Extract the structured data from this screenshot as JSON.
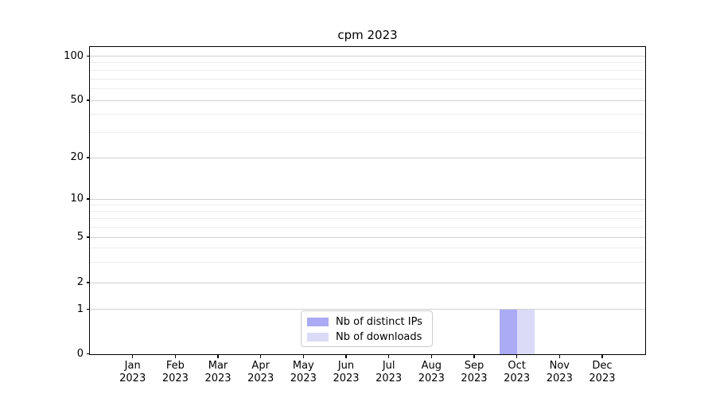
{
  "chart_data": {
    "type": "bar",
    "title": "cpm 2023",
    "categories": [
      "Jan",
      "Feb",
      "Mar",
      "Apr",
      "May",
      "Jun",
      "Jul",
      "Aug",
      "Sep",
      "Oct",
      "Nov",
      "Dec"
    ],
    "category_subline": "2023",
    "series": [
      {
        "name": "Nb of distinct IPs",
        "color": "#aaaaf5",
        "values": [
          0,
          0,
          0,
          0,
          0,
          0,
          0,
          0,
          0,
          1,
          0,
          0
        ]
      },
      {
        "name": "Nb of downloads",
        "color": "#dbdbf8",
        "values": [
          0,
          0,
          0,
          0,
          0,
          0,
          0,
          0,
          0,
          1,
          0,
          0
        ]
      }
    ],
    "yscale": "symlog",
    "ylim": [
      0,
      115
    ],
    "y_major_ticks": [
      0,
      1,
      2,
      5,
      10,
      20,
      50,
      100
    ],
    "y_minor_gridlines": [
      3,
      4,
      6,
      7,
      8,
      9,
      30,
      40,
      60,
      70,
      80,
      90
    ],
    "grid": "horizontal",
    "legend_position": "lower-center-inside",
    "colors": {
      "major_grid": "#d0d0d0",
      "minor_grid": "#ededed",
      "axis": "#000000",
      "legend_border": "#cccccc",
      "text": "#000000",
      "background": "#ffffff"
    }
  }
}
